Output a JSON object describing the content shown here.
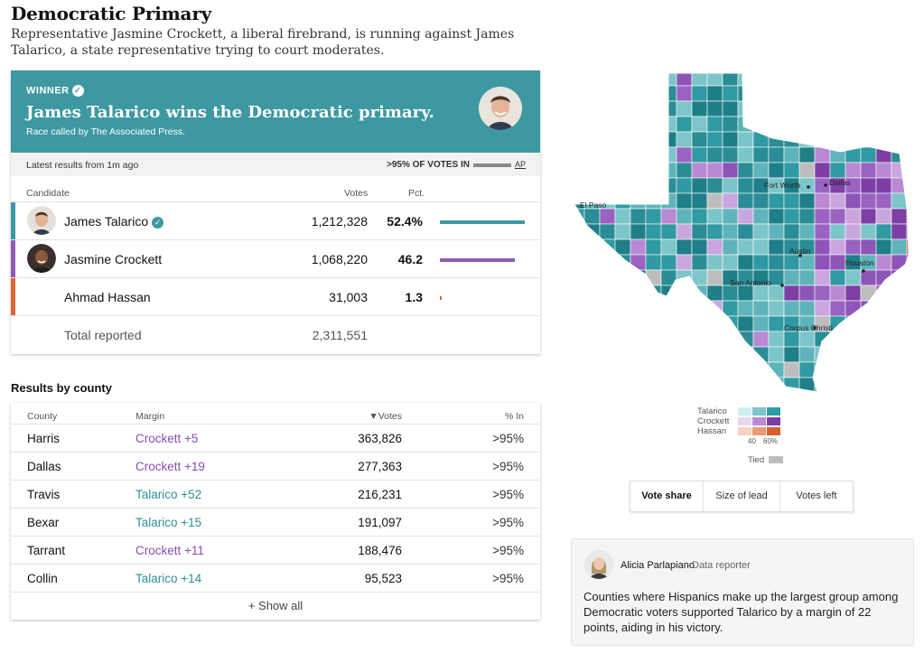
{
  "page": {
    "title": "Democratic Primary",
    "dek": "Representative Jasmine Crockett, a liberal firebrand, is running against James Talarico, a state representative trying to court moderates."
  },
  "winner_banner": {
    "tag": "WINNER",
    "headline": "James Talarico wins the Democratic primary.",
    "called_by": "Race called by The Associated Press.",
    "color": "#3d98a2"
  },
  "status": {
    "latest": "Latest results from 1m ago",
    "pct_in": ">95% OF VOTES IN",
    "source": "AP"
  },
  "results": {
    "headers": {
      "candidate": "Candidate",
      "votes": "Votes",
      "pct": "Pct."
    },
    "candidates": [
      {
        "name": "James Talarico",
        "votes": "1,212,328",
        "pct": "52.4%",
        "share": 52.4,
        "color": "#3d98a2",
        "winner": true
      },
      {
        "name": "Jasmine Crockett",
        "votes": "1,068,220",
        "pct": "46.2",
        "share": 46.2,
        "color": "#8e5bb5",
        "winner": false
      },
      {
        "name": "Ahmad Hassan",
        "votes": "31,003",
        "pct": "1.3",
        "share": 1.3,
        "color": "#e0653a",
        "winner": false
      }
    ],
    "total_label": "Total reported",
    "total_votes": "2,311,551"
  },
  "county_table": {
    "title": "Results by county",
    "headers": {
      "county": "County",
      "margin": "Margin",
      "votes": "▼Votes",
      "pct_in": "% In"
    },
    "rows": [
      {
        "county": "Harris",
        "margin": "Crockett +5",
        "leader": "crockett",
        "votes": "363,826",
        "pct_in": ">95%"
      },
      {
        "county": "Dallas",
        "margin": "Crockett +19",
        "leader": "crockett",
        "votes": "277,363",
        "pct_in": ">95%"
      },
      {
        "county": "Travis",
        "margin": "Talarico +52",
        "leader": "talarico",
        "votes": "216,231",
        "pct_in": ">95%"
      },
      {
        "county": "Bexar",
        "margin": "Talarico +15",
        "leader": "talarico",
        "votes": "191,097",
        "pct_in": ">95%"
      },
      {
        "county": "Tarrant",
        "margin": "Crockett +11",
        "leader": "crockett",
        "votes": "188,476",
        "pct_in": ">95%"
      },
      {
        "county": "Collin",
        "margin": "Talarico +14",
        "leader": "talarico",
        "votes": "95,523",
        "pct_in": ">95%"
      }
    ],
    "show_all": "+ Show all"
  },
  "map": {
    "cities": [
      "El Paso",
      "Fort Worth",
      "Dallas",
      "Austin",
      "Houston",
      "San Antonio",
      "Corpus Christi"
    ]
  },
  "legend": {
    "rows": [
      {
        "label": "Talarico",
        "colors": [
          "#cdeef0",
          "#7cc5c9",
          "#2f9aa2"
        ]
      },
      {
        "label": "Crockett",
        "colors": [
          "#e8d6f0",
          "#b98ad3",
          "#7d3fa6"
        ]
      },
      {
        "label": "Hassan",
        "colors": [
          "#f7d2c0",
          "#ec9a74",
          "#d7602f"
        ]
      }
    ],
    "ticks": [
      "40",
      "60%"
    ],
    "tied_label": "Tied",
    "tied_color": "#bdbdbd"
  },
  "toggle": {
    "options": [
      "Vote share",
      "Size of lead",
      "Votes left"
    ],
    "active": "Vote share"
  },
  "note": {
    "reporter": "Alicia Parlapiano",
    "role": "Data reporter",
    "text": "Counties where Hispanics make up the largest group among Democratic voters supported Talarico by a margin of 22 points, aiding in his victory."
  }
}
